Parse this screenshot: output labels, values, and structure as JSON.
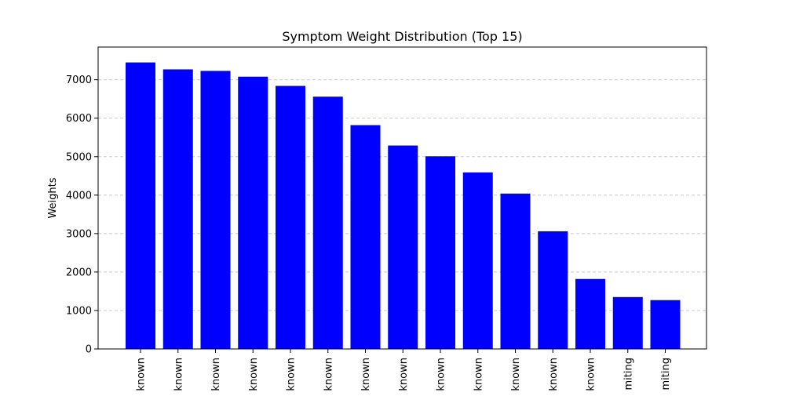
{
  "chart_data": {
    "type": "bar",
    "title": "Symptom Weight Distribution (Top 15)",
    "xlabel": "",
    "ylabel": "Weights",
    "categories": [
      "known",
      "known",
      "known",
      "known",
      "known",
      "known",
      "known",
      "known",
      "known",
      "known",
      "known",
      "known",
      "known",
      "miting",
      "miting"
    ],
    "values": [
      7450,
      7270,
      7230,
      7080,
      6840,
      6560,
      5820,
      5290,
      5010,
      4590,
      4040,
      3060,
      1820,
      1350,
      1270
    ],
    "ylim": [
      0,
      7850
    ],
    "yticks": [
      0,
      1000,
      2000,
      3000,
      4000,
      5000,
      6000,
      7000
    ],
    "grid": "y-dashed",
    "colors": {
      "bar": "#0000ff",
      "grid": "#c8c8c8"
    }
  }
}
